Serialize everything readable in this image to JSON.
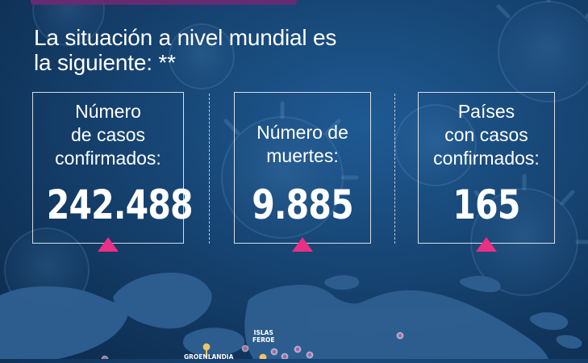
{
  "headline": {
    "line_1": "La situación a nivel mundial es",
    "line_2": "la siguiente: **"
  },
  "stats": [
    {
      "label_lines": [
        "Número",
        "de casos",
        "confirmados:"
      ],
      "value": "242.488"
    },
    {
      "label_lines": [
        "Número de",
        "muertes:"
      ],
      "value": "9.885"
    },
    {
      "label_lines": [
        "Países",
        "con casos",
        "confirmados:"
      ],
      "value": "165"
    }
  ],
  "map": {
    "label_islas_feroe": [
      "ISLAS",
      "FEROE"
    ],
    "label_groenlandia": "GROENLANDIA",
    "marker_colors": {
      "pink": "#e44c9d",
      "yellow": "#f0c565",
      "purple": "#a962c8"
    }
  },
  "colors": {
    "background_primary": "#174675",
    "accent_triangle": "#ea2f84",
    "top_strip": "#6a2a72"
  }
}
